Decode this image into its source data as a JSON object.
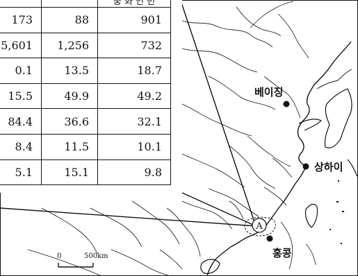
{
  "table": {
    "header": [
      "",
      "",
      "중 화 인 민"
    ],
    "rows": [
      [
        "173",
        "88",
        "901"
      ],
      [
        "5,601",
        "1,256",
        "732"
      ],
      [
        "0.1",
        "13.5",
        "18.7"
      ],
      [
        "15.5",
        "49.9",
        "49.2"
      ],
      [
        "84.4",
        "36.6",
        "32.1"
      ],
      [
        "8.4",
        "11.5",
        "10.1"
      ],
      [
        "5.1",
        "15.1",
        "9.8"
      ]
    ]
  },
  "map": {
    "places": {
      "beijing": "베이징",
      "shanghai": "상하이",
      "hongkong": "홍콩"
    },
    "marker_a": "A",
    "scale_zero": "0",
    "scale_max": "500",
    "scale_unit": "km"
  },
  "colors": {
    "ink": "#111111",
    "background": "#ffffff"
  }
}
